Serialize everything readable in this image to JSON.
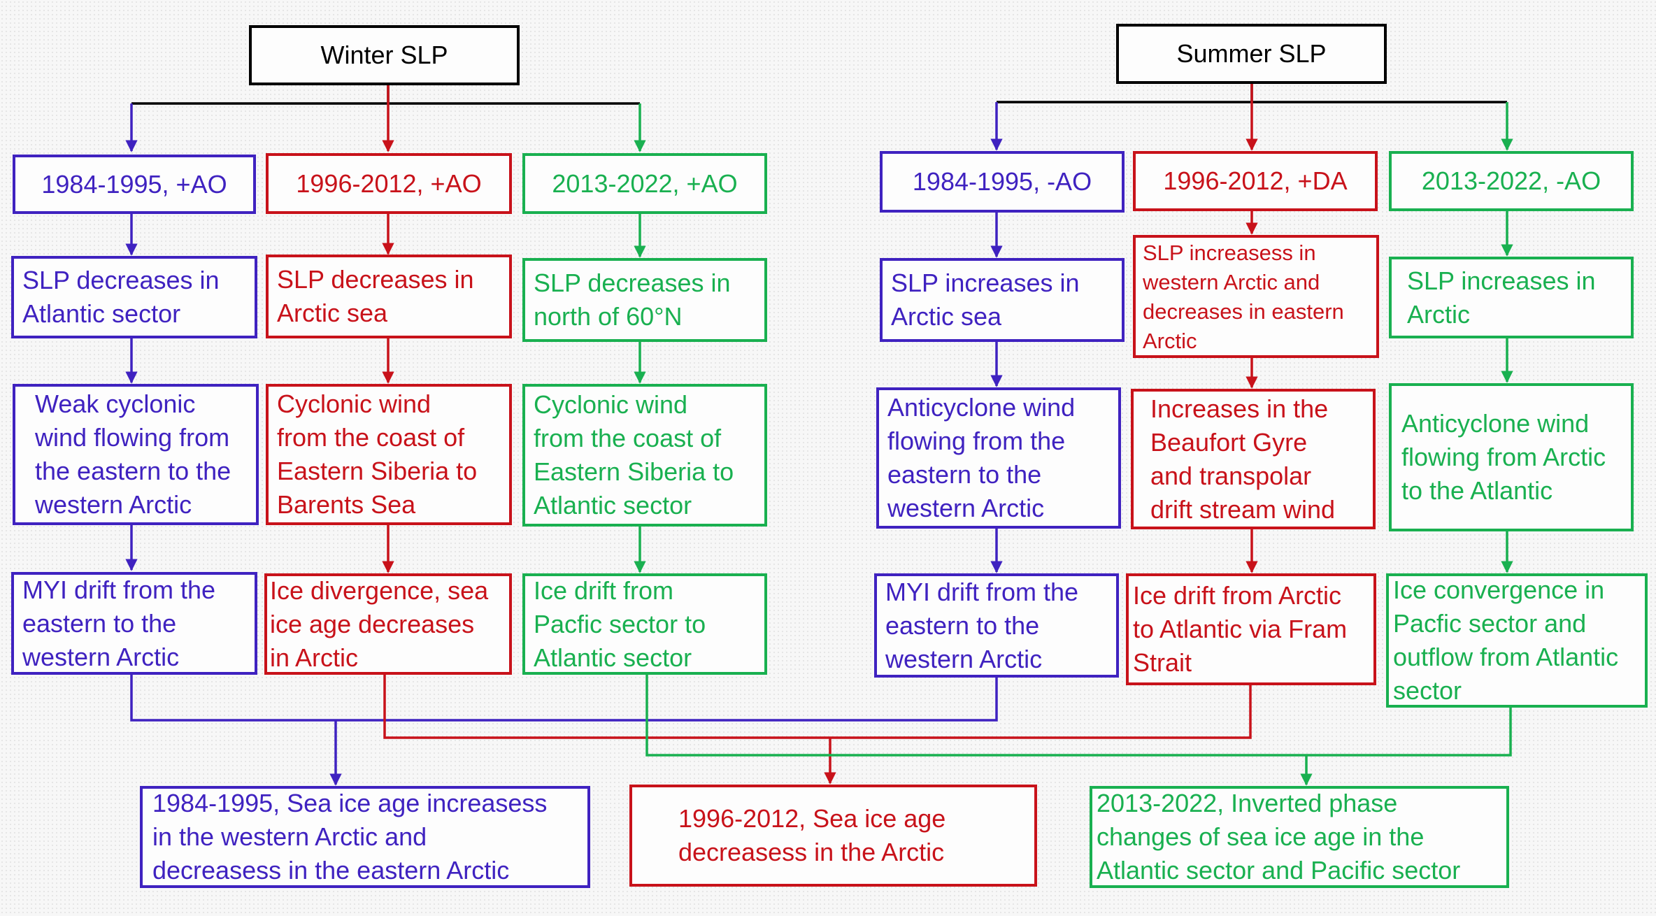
{
  "colors": {
    "black": "#000000",
    "blue": "#3f22c0",
    "red": "#c8121a",
    "green": "#19b050"
  },
  "winter": {
    "title": "Winter SLP",
    "col1": {
      "period": "1984-1995, +AO",
      "slp": "SLP decreases in\nAtlantic sector",
      "wind": "Weak cyclonic\nwind flowing from\nthe eastern to the\nwestern  Arctic",
      "drift": "MYI drift from the\neastern to the\nwestern  Arctic"
    },
    "col2": {
      "period": "1996-2012, +AO",
      "slp": "SLP decreases in\nArctic sea",
      "wind": "Cyclonic wind\nfrom the coast of\nEastern Siberia to\nBarents Sea",
      "drift": "Ice divergence, sea\nice age decreases\nin Arctic"
    },
    "col3": {
      "period": "2013-2022, +AO",
      "slp": "SLP decreases in\nnorth of 60°N",
      "wind": "Cyclonic wind\nfrom the coast of\nEastern Siberia to\nAtlantic sector",
      "drift": "Ice drift from\nPacfic sector  to\nAtlantic sector"
    }
  },
  "summer": {
    "title": "Summer SLP",
    "col1": {
      "period": "1984-1995, -AO",
      "slp": "SLP increases in\nArctic sea",
      "wind": "Anticyclone wind\nflowing from the\neastern to the\nwestern  Arctic",
      "drift": "MYI drift from the\neastern to the\nwestern  Arctic"
    },
    "col2": {
      "period": "1996-2012, +DA",
      "slp": "SLP increasess in\nwestern  Arctic and\ndecreases in eastern\nArctic",
      "wind": "Increases in the\nBeaufort Gyre\nand transpolar\ndrift stream wind",
      "drift": "Ice drift from Arctic\nto Atlantic via Fram\nStrait"
    },
    "col3": {
      "period": "2013-2022, -AO",
      "slp": "SLP increases in\nArctic",
      "wind": "Anticyclone wind\nflowing from Arctic\nto the Atlantic",
      "drift": "Ice convergence in\nPacfic sector and\noutflow from Atlantic\nsector"
    }
  },
  "results": {
    "blue": "1984-1995, Sea ice age increasess\nin the western  Arctic and\ndecreasess in the eastern  Arctic",
    "red": "1996-2012, Sea ice age\ndecreasess in the  Arctic",
    "green": "2013-2022, Inverted phase\nchanges of sea ice age in the\nAtlantic sector and Pacific sector"
  }
}
